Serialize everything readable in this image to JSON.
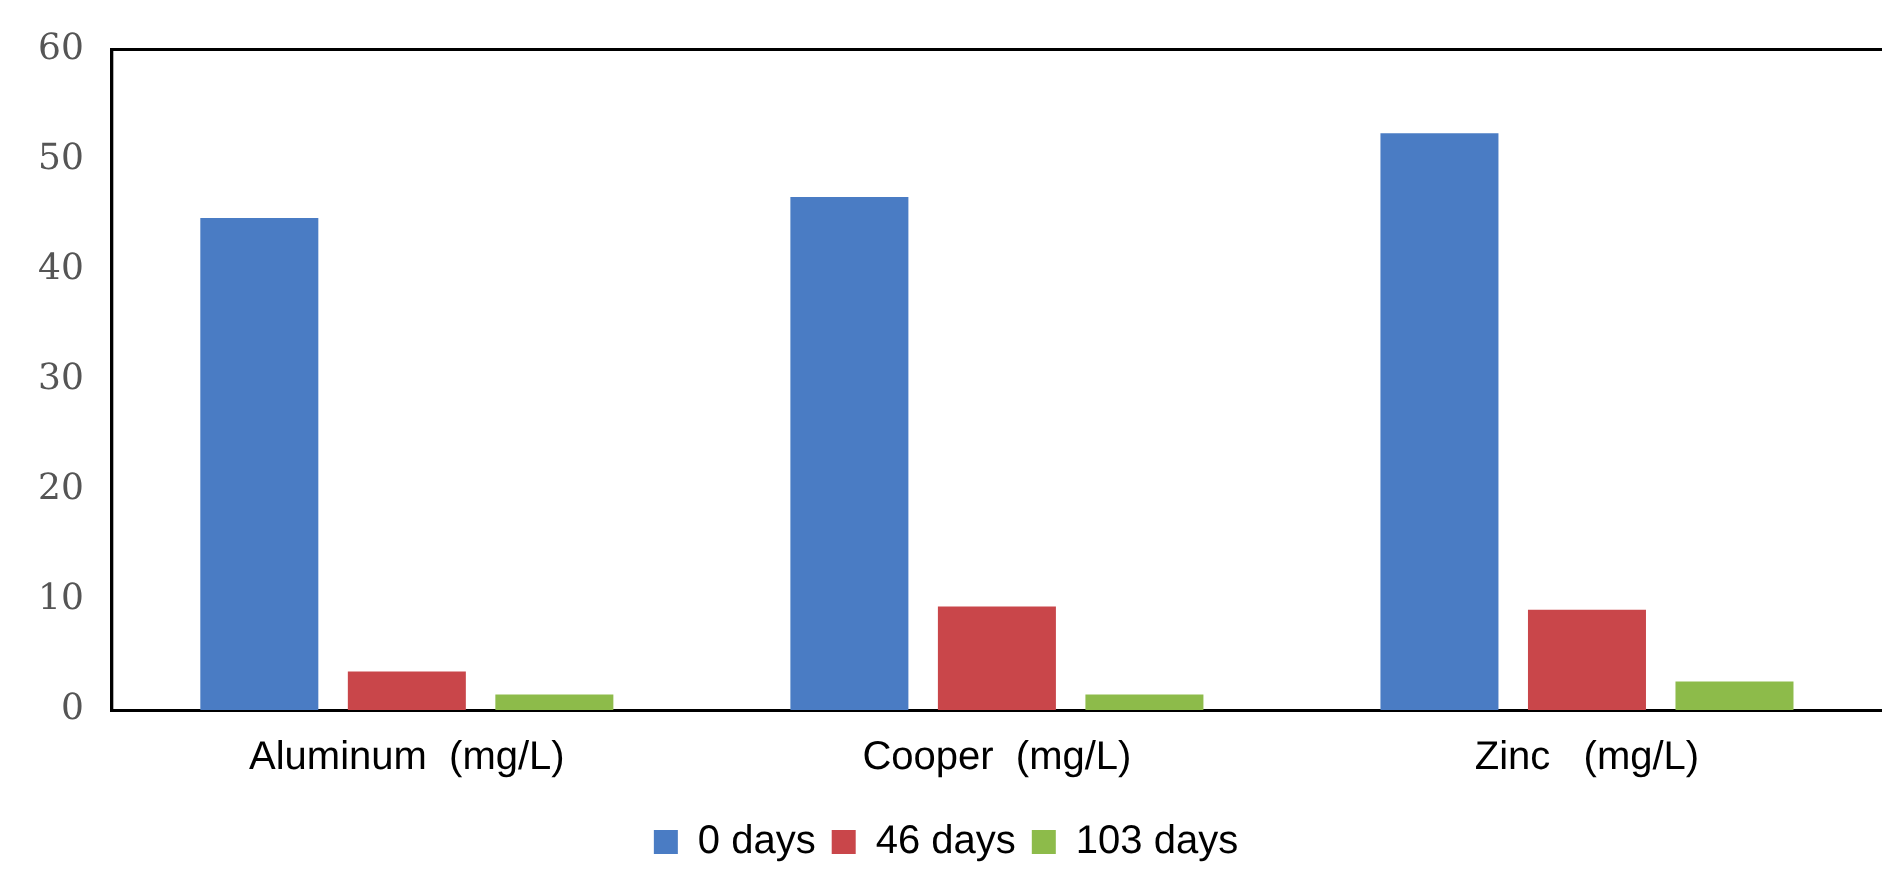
{
  "chart_data": {
    "type": "bar",
    "categories": [
      "Aluminum  (mg/L)",
      "Cooper  (mg/L)",
      "Zinc   (mg/L)"
    ],
    "series": [
      {
        "name": "0 days",
        "color": "#4a7cc4",
        "values": [
          44.7,
          46.6,
          52.4
        ]
      },
      {
        "name": "46 days",
        "color": "#c9464a",
        "values": [
          3.5,
          9.4,
          9.1
        ]
      },
      {
        "name": "103 days",
        "color": "#8dbb4a",
        "values": [
          1.4,
          1.4,
          2.6
        ]
      }
    ],
    "ylim": [
      0,
      60
    ],
    "yticks": [
      0,
      10,
      20,
      30,
      40,
      50,
      60
    ],
    "grid": false,
    "legend": "bottom"
  }
}
